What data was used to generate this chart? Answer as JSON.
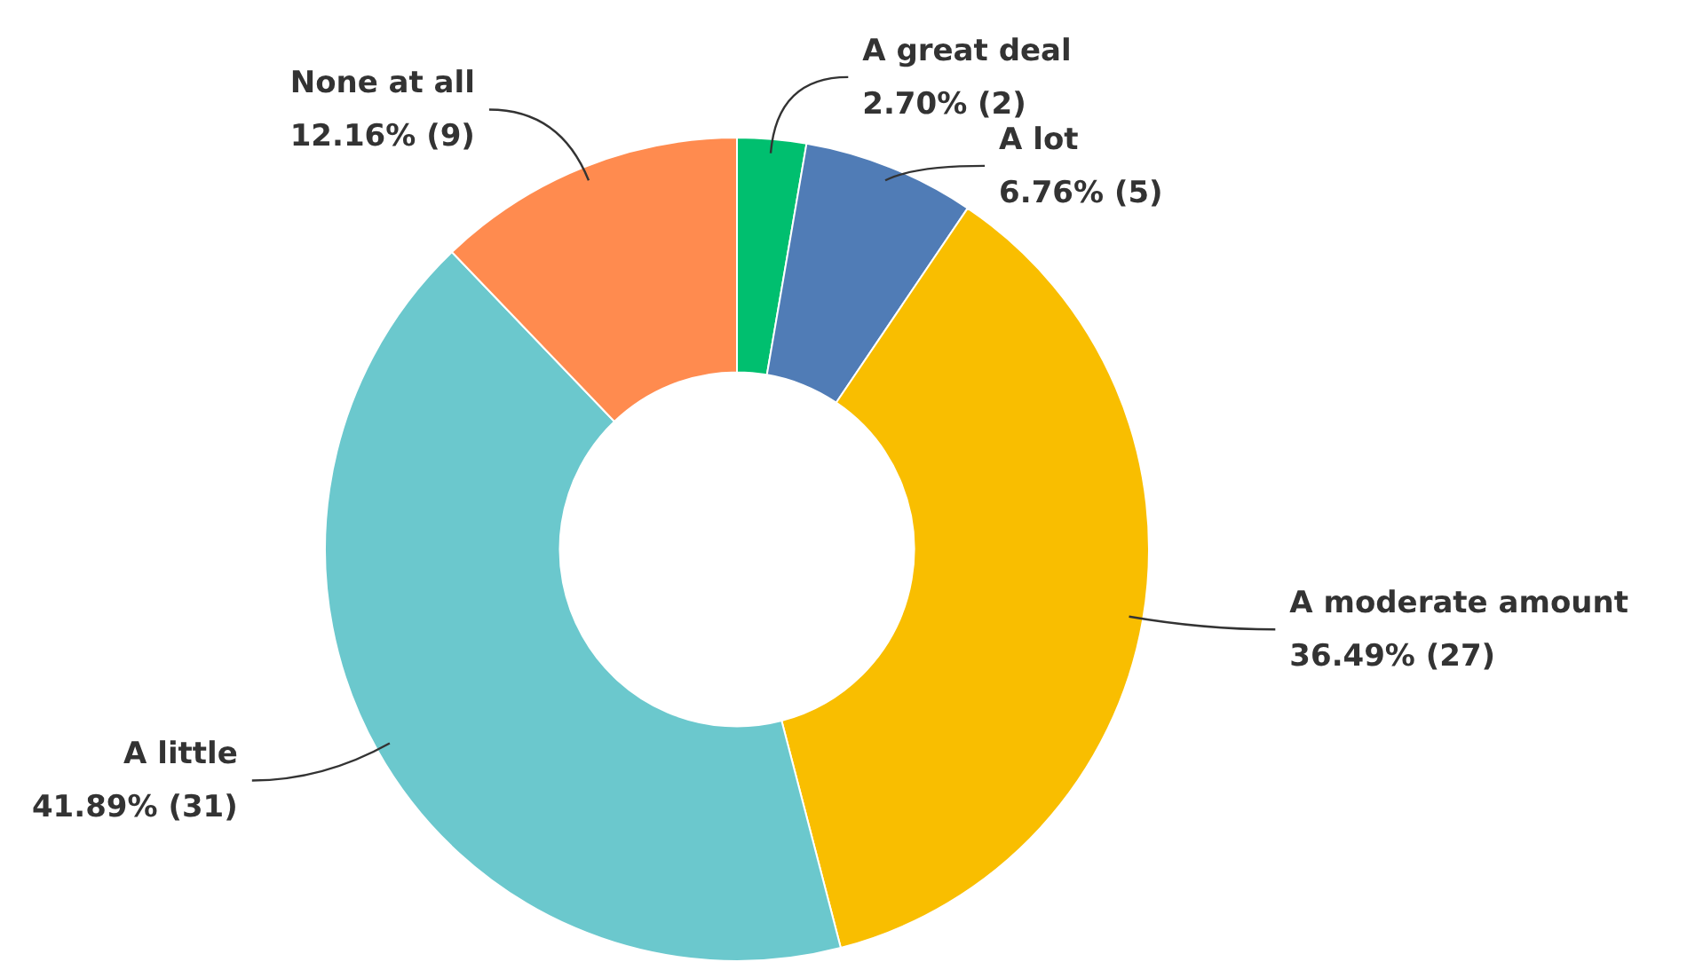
{
  "chart_data": {
    "type": "donut",
    "categories": [
      "A great deal",
      "A lot",
      "A moderate amount",
      "A little",
      "None at all"
    ],
    "values": [
      2,
      5,
      27,
      31,
      9
    ],
    "value_labels": [
      "2.70% (2)",
      "6.76% (5)",
      "36.49% (27)",
      "41.89% (31)",
      "12.16% (9)"
    ],
    "colors": [
      "#00bf6f",
      "#507cb6",
      "#f9be00",
      "#6bc8cd",
      "#ff8b4f"
    ]
  }
}
